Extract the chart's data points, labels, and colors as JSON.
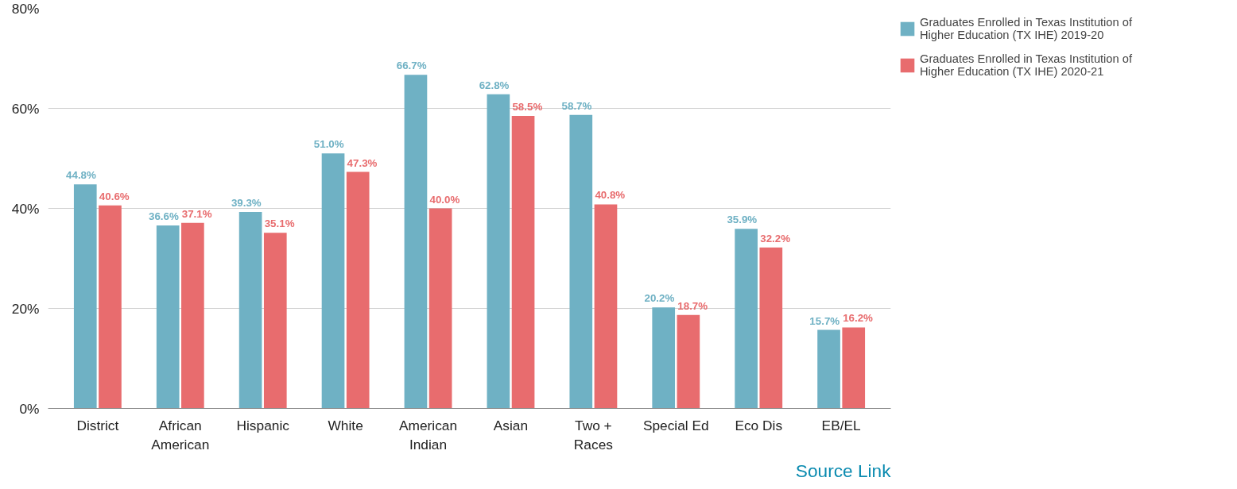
{
  "chart_data": {
    "type": "bar",
    "categories": [
      "District",
      "African American",
      "Hispanic",
      "White",
      "American Indian",
      "Asian",
      "Two + Races",
      "Special Ed",
      "Eco Dis",
      "EB/EL"
    ],
    "series": [
      {
        "name": "Graduates Enrolled in Texas Institution of Higher Education (TX IHE) 2019-20",
        "color": "#6fb1c4",
        "values": [
          44.8,
          36.6,
          39.3,
          51.0,
          66.7,
          62.8,
          58.7,
          20.2,
          35.9,
          15.7
        ],
        "value_labels": [
          "44.8%",
          "36.6%",
          "39.3%",
          "51.0%",
          "66.7%",
          "62.8%",
          "58.7%",
          "20.2%",
          "35.9%",
          "15.7%"
        ]
      },
      {
        "name": "Graduates Enrolled in Texas Institution of Higher Education (TX IHE) 2020-21",
        "color": "#e86c6e",
        "values": [
          40.6,
          37.1,
          35.1,
          47.3,
          40.0,
          58.5,
          40.8,
          18.7,
          32.2,
          16.2
        ],
        "value_labels": [
          "40.6%",
          "37.1%",
          "35.1%",
          "47.3%",
          "40.0%",
          "58.5%",
          "40.8%",
          "18.7%",
          "32.2%",
          "16.2%"
        ]
      }
    ],
    "ylim": [
      0,
      80
    ],
    "yticks": [
      {
        "value": 0,
        "label": "0%"
      },
      {
        "value": 20,
        "label": "20%"
      },
      {
        "value": 40,
        "label": "40%"
      },
      {
        "value": 60,
        "label": "60%"
      },
      {
        "value": 80,
        "label": "80%"
      }
    ],
    "grid": "y",
    "legend": "top right",
    "annotations": [
      "Source Link"
    ]
  }
}
